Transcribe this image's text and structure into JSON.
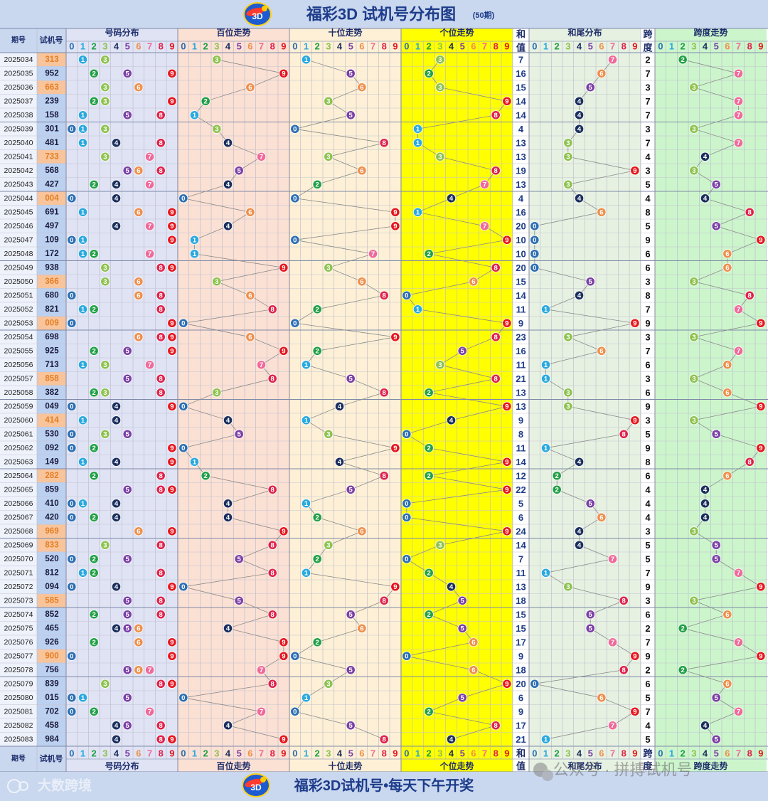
{
  "header": {
    "title": "福彩3D 试机号分布图",
    "period_count": "(50期)"
  },
  "footer": {
    "slogan": "福彩3D试机号•每天下午开奖",
    "brand": "大数跨境",
    "wechat": "公众号 · 拼搏试机号"
  },
  "columns": {
    "issue": "期号",
    "trial": "试机号",
    "code_dist": "号码分布",
    "hundreds": "百位走势",
    "tens": "十位走势",
    "units": "个位走势",
    "sum_a": "和",
    "sum_b": "值",
    "sum_tail": "和尾分布",
    "span_a": "跨",
    "span_b": "度",
    "span_trend": "跨度走势",
    "digits": [
      "0",
      "1",
      "2",
      "3",
      "4",
      "5",
      "6",
      "7",
      "8",
      "9"
    ]
  },
  "colors": {
    "digit": [
      "#2c6fb3",
      "#2aa9de",
      "#21a046",
      "#8dc24d",
      "#1b2f5e",
      "#7b3fa6",
      "#ef8f4b",
      "#ef6a9a",
      "#e0224a",
      "#e5151c"
    ],
    "band_code": "#dfe3f4",
    "band_hundreds": "#fbe0d4",
    "band_tens": "#fdf0d6",
    "band_units": "#ffff00",
    "band_sum_tail": "#e6f1e2",
    "band_span": "#ccf5cc",
    "header_bg": "#c9d7ef",
    "title_color": "#1d3c8a",
    "trial_highlight": "#f7c49c",
    "trial_text_highlight": "#e67e22"
  },
  "chart_data": {
    "type": "table",
    "rows": [
      {
        "issue": "2025034",
        "trial": "313",
        "sum": 7,
        "span": 2,
        "dup": true
      },
      {
        "issue": "2025035",
        "trial": "952",
        "sum": 16,
        "span": 7,
        "dup": false
      },
      {
        "issue": "2025036",
        "trial": "663",
        "sum": 15,
        "span": 3,
        "dup": true
      },
      {
        "issue": "2025037",
        "trial": "239",
        "sum": 14,
        "span": 7,
        "dup": false
      },
      {
        "issue": "2025038",
        "trial": "158",
        "sum": 14,
        "span": 7,
        "dup": false
      },
      {
        "issue": "2025039",
        "trial": "301",
        "sum": 4,
        "span": 3,
        "dup": false
      },
      {
        "issue": "2025040",
        "trial": "481",
        "sum": 13,
        "span": 7,
        "dup": false
      },
      {
        "issue": "2025041",
        "trial": "733",
        "sum": 13,
        "span": 4,
        "dup": true
      },
      {
        "issue": "2025042",
        "trial": "568",
        "sum": 19,
        "span": 3,
        "dup": false
      },
      {
        "issue": "2025043",
        "trial": "427",
        "sum": 13,
        "span": 5,
        "dup": false
      },
      {
        "issue": "2025044",
        "trial": "004",
        "sum": 4,
        "span": 4,
        "dup": true
      },
      {
        "issue": "2025045",
        "trial": "691",
        "sum": 16,
        "span": 8,
        "dup": false
      },
      {
        "issue": "2025046",
        "trial": "497",
        "sum": 20,
        "span": 5,
        "dup": false
      },
      {
        "issue": "2025047",
        "trial": "109",
        "sum": 10,
        "span": 9,
        "dup": false
      },
      {
        "issue": "2025048",
        "trial": "172",
        "sum": 10,
        "span": 6,
        "dup": false
      },
      {
        "issue": "2025049",
        "trial": "938",
        "sum": 20,
        "span": 6,
        "dup": false
      },
      {
        "issue": "2025050",
        "trial": "366",
        "sum": 15,
        "span": 3,
        "dup": true
      },
      {
        "issue": "2025051",
        "trial": "680",
        "sum": 14,
        "span": 8,
        "dup": false
      },
      {
        "issue": "2025052",
        "trial": "821",
        "sum": 11,
        "span": 7,
        "dup": false
      },
      {
        "issue": "2025053",
        "trial": "009",
        "sum": 9,
        "span": 9,
        "dup": true
      },
      {
        "issue": "2025054",
        "trial": "698",
        "sum": 23,
        "span": 3,
        "dup": false
      },
      {
        "issue": "2025055",
        "trial": "925",
        "sum": 16,
        "span": 7,
        "dup": false
      },
      {
        "issue": "2025056",
        "trial": "713",
        "sum": 11,
        "span": 6,
        "dup": false
      },
      {
        "issue": "2025057",
        "trial": "858",
        "sum": 21,
        "span": 3,
        "dup": true
      },
      {
        "issue": "2025058",
        "trial": "382",
        "sum": 13,
        "span": 6,
        "dup": false
      },
      {
        "issue": "2025059",
        "trial": "049",
        "sum": 13,
        "span": 9,
        "dup": false
      },
      {
        "issue": "2025060",
        "trial": "414",
        "sum": 9,
        "span": 3,
        "dup": true
      },
      {
        "issue": "2025061",
        "trial": "530",
        "sum": 8,
        "span": 5,
        "dup": false
      },
      {
        "issue": "2025062",
        "trial": "092",
        "sum": 11,
        "span": 9,
        "dup": false
      },
      {
        "issue": "2025063",
        "trial": "149",
        "sum": 14,
        "span": 8,
        "dup": false
      },
      {
        "issue": "2025064",
        "trial": "282",
        "sum": 12,
        "span": 6,
        "dup": true
      },
      {
        "issue": "2025065",
        "trial": "859",
        "sum": 22,
        "span": 4,
        "dup": false
      },
      {
        "issue": "2025066",
        "trial": "410",
        "sum": 5,
        "span": 4,
        "dup": false
      },
      {
        "issue": "2025067",
        "trial": "420",
        "sum": 6,
        "span": 4,
        "dup": false
      },
      {
        "issue": "2025068",
        "trial": "969",
        "sum": 24,
        "span": 3,
        "dup": true
      },
      {
        "issue": "2025069",
        "trial": "833",
        "sum": 14,
        "span": 5,
        "dup": true
      },
      {
        "issue": "2025070",
        "trial": "520",
        "sum": 7,
        "span": 5,
        "dup": false
      },
      {
        "issue": "2025071",
        "trial": "812",
        "sum": 11,
        "span": 7,
        "dup": false
      },
      {
        "issue": "2025072",
        "trial": "094",
        "sum": 13,
        "span": 9,
        "dup": false
      },
      {
        "issue": "2025073",
        "trial": "585",
        "sum": 18,
        "span": 3,
        "dup": true
      },
      {
        "issue": "2025074",
        "trial": "852",
        "sum": 15,
        "span": 6,
        "dup": false
      },
      {
        "issue": "2025075",
        "trial": "465",
        "sum": 15,
        "span": 2,
        "dup": false
      },
      {
        "issue": "2025076",
        "trial": "926",
        "sum": 17,
        "span": 7,
        "dup": false
      },
      {
        "issue": "2025077",
        "trial": "900",
        "sum": 9,
        "span": 9,
        "dup": true
      },
      {
        "issue": "2025078",
        "trial": "756",
        "sum": 18,
        "span": 2,
        "dup": false
      },
      {
        "issue": "2025079",
        "trial": "839",
        "sum": 20,
        "span": 6,
        "dup": false
      },
      {
        "issue": "2025080",
        "trial": "015",
        "sum": 6,
        "span": 5,
        "dup": false
      },
      {
        "issue": "2025081",
        "trial": "702",
        "sum": 9,
        "span": 7,
        "dup": false
      },
      {
        "issue": "2025082",
        "trial": "458",
        "sum": 17,
        "span": 4,
        "dup": false
      },
      {
        "issue": "2025083",
        "trial": "984",
        "sum": 21,
        "span": 5,
        "dup": false
      }
    ]
  }
}
